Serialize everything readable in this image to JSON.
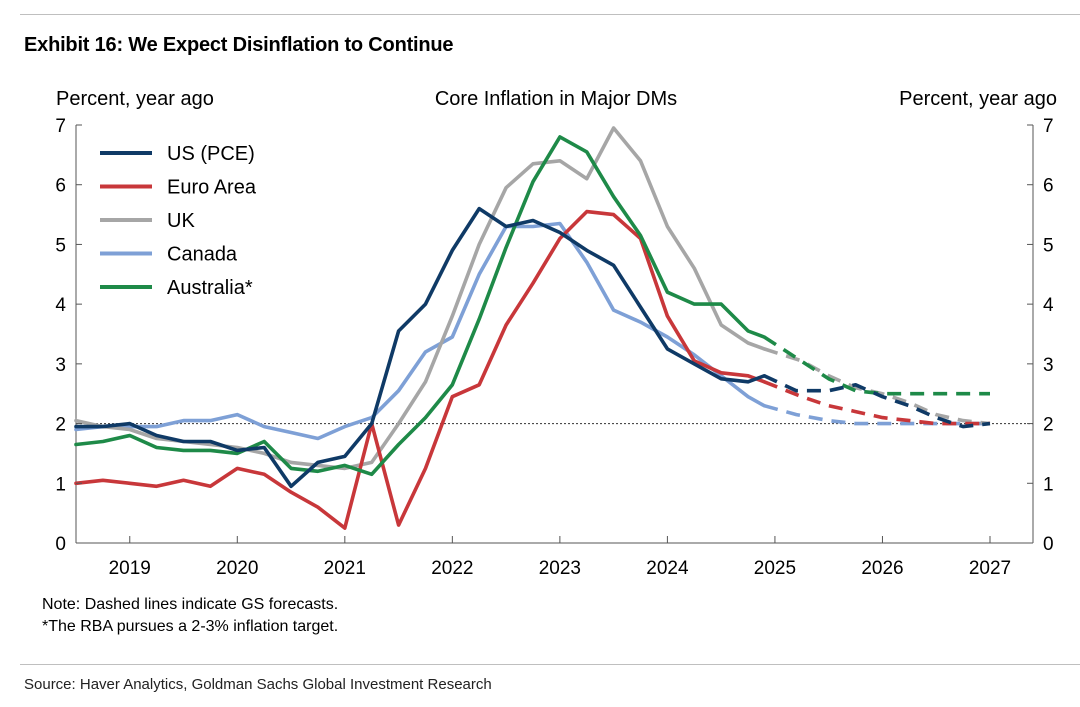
{
  "exhibit_title": "Exhibit 16: We Expect Disinflation to Continue",
  "notes": [
    "Note: Dashed lines indicate GS forecasts.",
    "*The RBA pursues a 2-3% inflation target."
  ],
  "source": "Source: Haver Analytics, Goldman Sachs Global Investment Research",
  "chart_data": {
    "type": "line",
    "title": "Core Inflation in Major DMs",
    "ylabel_left": "Percent, year ago",
    "ylabel_right": "Percent, year ago",
    "xlim": [
      2018.5,
      2027.4
    ],
    "ylim": [
      0,
      7
    ],
    "yticks": [
      0,
      1,
      2,
      3,
      4,
      5,
      6,
      7
    ],
    "xticks": [
      2019,
      2020,
      2021,
      2022,
      2023,
      2024,
      2025,
      2026,
      2027
    ],
    "xtick_labels": [
      "2019",
      "2020",
      "2021",
      "2022",
      "2023",
      "2024",
      "2025",
      "2026",
      "2027"
    ],
    "reference_line": 2,
    "legend_position": "top-left",
    "series": [
      {
        "name": "US (PCE)",
        "color": "#0f3a66",
        "actual": [
          [
            2018.5,
            1.95
          ],
          [
            2018.75,
            1.95
          ],
          [
            2019.0,
            2.0
          ],
          [
            2019.25,
            1.8
          ],
          [
            2019.5,
            1.7
          ],
          [
            2019.75,
            1.7
          ],
          [
            2020.0,
            1.55
          ],
          [
            2020.25,
            1.6
          ],
          [
            2020.5,
            0.95
          ],
          [
            2020.75,
            1.35
          ],
          [
            2021.0,
            1.45
          ],
          [
            2021.25,
            2.0
          ],
          [
            2021.5,
            3.55
          ],
          [
            2021.75,
            4.0
          ],
          [
            2022.0,
            4.9
          ],
          [
            2022.25,
            5.6
          ],
          [
            2022.5,
            5.3
          ],
          [
            2022.75,
            5.4
          ],
          [
            2023.0,
            5.2
          ],
          [
            2023.25,
            4.9
          ],
          [
            2023.5,
            4.65
          ],
          [
            2023.75,
            3.95
          ],
          [
            2024.0,
            3.25
          ],
          [
            2024.25,
            3.0
          ],
          [
            2024.5,
            2.75
          ],
          [
            2024.75,
            2.7
          ],
          [
            2024.9,
            2.8
          ]
        ],
        "forecast": [
          [
            2024.9,
            2.8
          ],
          [
            2025.2,
            2.55
          ],
          [
            2025.5,
            2.55
          ],
          [
            2025.75,
            2.65
          ],
          [
            2026.0,
            2.45
          ],
          [
            2026.25,
            2.3
          ],
          [
            2026.5,
            2.1
          ],
          [
            2026.75,
            1.95
          ],
          [
            2027.0,
            2.0
          ]
        ]
      },
      {
        "name": "Euro Area",
        "color": "#c8373a",
        "actual": [
          [
            2018.5,
            1.0
          ],
          [
            2018.75,
            1.05
          ],
          [
            2019.0,
            1.0
          ],
          [
            2019.25,
            0.95
          ],
          [
            2019.5,
            1.05
          ],
          [
            2019.75,
            0.95
          ],
          [
            2020.0,
            1.25
          ],
          [
            2020.25,
            1.15
          ],
          [
            2020.5,
            0.85
          ],
          [
            2020.75,
            0.6
          ],
          [
            2021.0,
            0.25
          ],
          [
            2021.25,
            2.0
          ],
          [
            2021.5,
            0.3
          ],
          [
            2021.75,
            1.25
          ],
          [
            2022.0,
            2.45
          ],
          [
            2022.25,
            2.65
          ],
          [
            2022.5,
            3.65
          ],
          [
            2022.75,
            4.35
          ],
          [
            2023.0,
            5.1
          ],
          [
            2023.25,
            5.55
          ],
          [
            2023.5,
            5.5
          ],
          [
            2023.75,
            5.1
          ],
          [
            2024.0,
            3.8
          ],
          [
            2024.25,
            3.05
          ],
          [
            2024.5,
            2.85
          ],
          [
            2024.75,
            2.8
          ],
          [
            2024.9,
            2.7
          ]
        ],
        "forecast": [
          [
            2024.9,
            2.7
          ],
          [
            2025.25,
            2.45
          ],
          [
            2025.5,
            2.3
          ],
          [
            2025.75,
            2.2
          ],
          [
            2026.0,
            2.1
          ],
          [
            2026.25,
            2.05
          ],
          [
            2026.5,
            2.0
          ],
          [
            2027.0,
            2.0
          ]
        ]
      },
      {
        "name": "UK",
        "color": "#a6a6a6",
        "actual": [
          [
            2018.5,
            2.05
          ],
          [
            2018.75,
            1.95
          ],
          [
            2019.0,
            1.9
          ],
          [
            2019.25,
            1.75
          ],
          [
            2019.5,
            1.7
          ],
          [
            2019.75,
            1.65
          ],
          [
            2020.0,
            1.6
          ],
          [
            2020.25,
            1.5
          ],
          [
            2020.5,
            1.35
          ],
          [
            2020.75,
            1.3
          ],
          [
            2021.0,
            1.25
          ],
          [
            2021.25,
            1.35
          ],
          [
            2021.5,
            2.0
          ],
          [
            2021.75,
            2.7
          ],
          [
            2022.0,
            3.8
          ],
          [
            2022.25,
            5.0
          ],
          [
            2022.5,
            5.95
          ],
          [
            2022.75,
            6.35
          ],
          [
            2023.0,
            6.4
          ],
          [
            2023.25,
            6.1
          ],
          [
            2023.5,
            6.95
          ],
          [
            2023.75,
            6.4
          ],
          [
            2024.0,
            5.3
          ],
          [
            2024.25,
            4.6
          ],
          [
            2024.5,
            3.65
          ],
          [
            2024.75,
            3.35
          ],
          [
            2024.9,
            3.25
          ]
        ],
        "forecast": [
          [
            2024.9,
            3.25
          ],
          [
            2025.25,
            3.05
          ],
          [
            2025.5,
            2.8
          ],
          [
            2025.75,
            2.6
          ],
          [
            2026.0,
            2.5
          ],
          [
            2026.25,
            2.35
          ],
          [
            2026.5,
            2.15
          ],
          [
            2026.75,
            2.05
          ],
          [
            2027.0,
            2.0
          ]
        ]
      },
      {
        "name": "Canada",
        "color": "#7ea0d6",
        "actual": [
          [
            2018.5,
            1.9
          ],
          [
            2018.75,
            1.95
          ],
          [
            2019.0,
            1.95
          ],
          [
            2019.25,
            1.95
          ],
          [
            2019.5,
            2.05
          ],
          [
            2019.75,
            2.05
          ],
          [
            2020.0,
            2.15
          ],
          [
            2020.25,
            1.95
          ],
          [
            2020.5,
            1.85
          ],
          [
            2020.75,
            1.75
          ],
          [
            2021.0,
            1.95
          ],
          [
            2021.25,
            2.1
          ],
          [
            2021.5,
            2.55
          ],
          [
            2021.75,
            3.2
          ],
          [
            2022.0,
            3.45
          ],
          [
            2022.25,
            4.5
          ],
          [
            2022.5,
            5.3
          ],
          [
            2022.75,
            5.3
          ],
          [
            2023.0,
            5.35
          ],
          [
            2023.25,
            4.7
          ],
          [
            2023.5,
            3.9
          ],
          [
            2023.75,
            3.7
          ],
          [
            2024.0,
            3.45
          ],
          [
            2024.25,
            3.15
          ],
          [
            2024.5,
            2.8
          ],
          [
            2024.75,
            2.45
          ],
          [
            2024.9,
            2.3
          ]
        ],
        "forecast": [
          [
            2024.9,
            2.3
          ],
          [
            2025.2,
            2.15
          ],
          [
            2025.5,
            2.05
          ],
          [
            2025.75,
            2.0
          ],
          [
            2026.0,
            2.0
          ],
          [
            2027.0,
            2.0
          ]
        ]
      },
      {
        "name": "Australia*",
        "color": "#1e8a48",
        "actual": [
          [
            2018.5,
            1.65
          ],
          [
            2018.75,
            1.7
          ],
          [
            2019.0,
            1.8
          ],
          [
            2019.25,
            1.6
          ],
          [
            2019.5,
            1.55
          ],
          [
            2019.75,
            1.55
          ],
          [
            2020.0,
            1.5
          ],
          [
            2020.25,
            1.7
          ],
          [
            2020.5,
            1.25
          ],
          [
            2020.75,
            1.2
          ],
          [
            2021.0,
            1.3
          ],
          [
            2021.25,
            1.15
          ],
          [
            2021.5,
            1.65
          ],
          [
            2021.75,
            2.1
          ],
          [
            2022.0,
            2.65
          ],
          [
            2022.25,
            3.75
          ],
          [
            2022.5,
            4.95
          ],
          [
            2022.75,
            6.05
          ],
          [
            2023.0,
            6.8
          ],
          [
            2023.25,
            6.55
          ],
          [
            2023.5,
            5.8
          ],
          [
            2023.75,
            5.15
          ],
          [
            2024.0,
            4.2
          ],
          [
            2024.25,
            4.0
          ],
          [
            2024.5,
            4.0
          ],
          [
            2024.75,
            3.55
          ],
          [
            2024.9,
            3.45
          ]
        ],
        "forecast": [
          [
            2024.9,
            3.45
          ],
          [
            2025.2,
            3.1
          ],
          [
            2025.5,
            2.75
          ],
          [
            2025.75,
            2.55
          ],
          [
            2026.0,
            2.5
          ],
          [
            2026.5,
            2.5
          ],
          [
            2027.0,
            2.5
          ]
        ]
      }
    ]
  }
}
